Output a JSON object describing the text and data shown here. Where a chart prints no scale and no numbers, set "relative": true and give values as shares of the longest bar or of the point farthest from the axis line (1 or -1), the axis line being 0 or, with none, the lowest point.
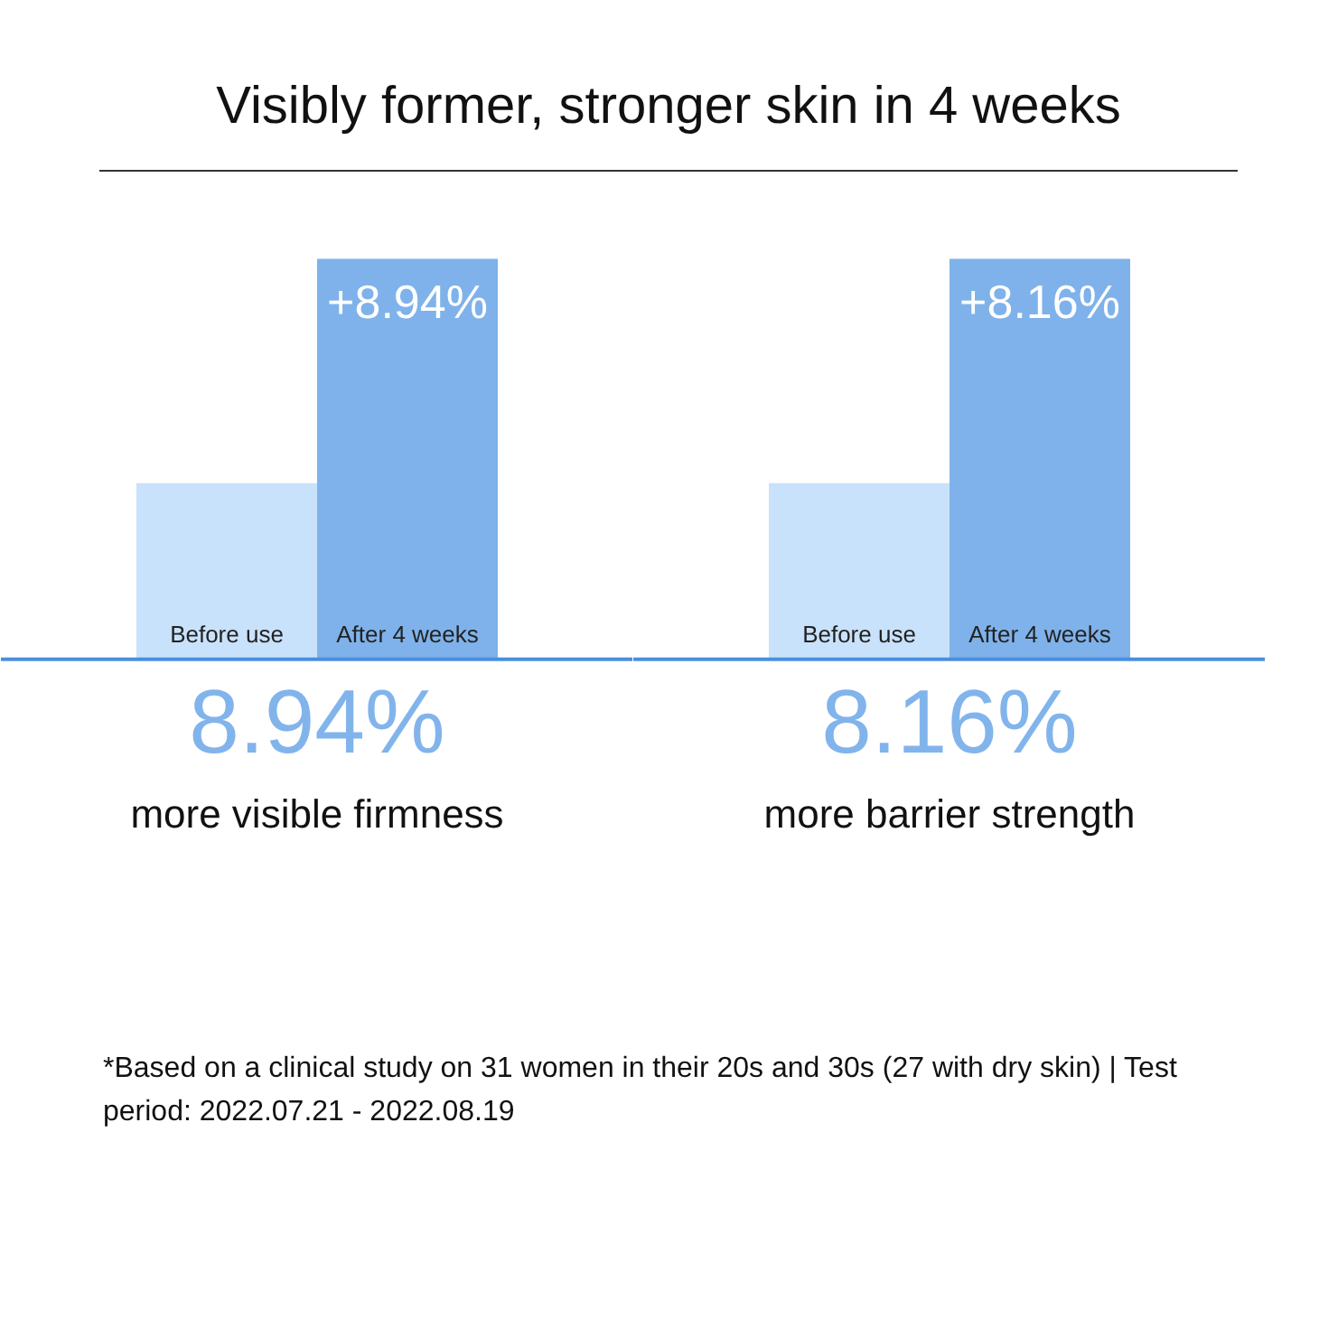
{
  "chart_data": [
    {
      "type": "bar",
      "title": "Visibly former, stronger skin in 4 weeks",
      "relative": true,
      "categories": [
        "Before use",
        "After 4 weeks"
      ],
      "values": [
        0.44,
        1
      ],
      "colors": [
        "#c9e2fb",
        "#7fb2ea"
      ],
      "annotations": [
        {
          "text": "+8.94%",
          "x": "After 4 weeks",
          "y": 1
        },
        "8.94%",
        "more visible firmness"
      ]
    },
    {
      "type": "bar",
      "relative": true,
      "categories": [
        "Before use",
        "After 4 weeks"
      ],
      "values": [
        0.44,
        1
      ],
      "colors": [
        "#c9e2fb",
        "#7fb2ea"
      ],
      "annotations": [
        {
          "text": "+8.16%",
          "x": "After 4 weeks",
          "y": 1
        },
        "8.16%",
        "more barrier strength",
        "*Based on a clinical study on 31 women in their 20s and 30s (27 with dry skin) | Test period: 2022.07.21 - 2022.08.19"
      ]
    }
  ]
}
